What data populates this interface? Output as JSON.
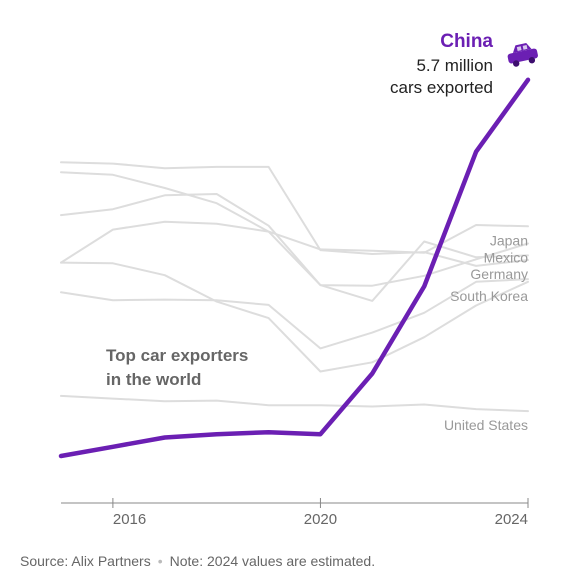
{
  "chart_data": {
    "type": "line",
    "title": "",
    "xlabel": "",
    "ylabel": "",
    "x": [
      2015,
      2016,
      2017,
      2018,
      2019,
      2020,
      2021,
      2022,
      2023,
      2024
    ],
    "x_ticks": [
      "2016",
      "2020",
      "2024"
    ],
    "tick_years": [
      2016,
      2020,
      2024
    ],
    "xlim": [
      2015,
      2024
    ],
    "ylim": [
      0,
      6.0
    ],
    "grid": false,
    "legend": "none",
    "series": [
      {
        "name": "Japan",
        "color": "#dddddd",
        "values": [
          4.3,
          4.26,
          4.06,
          3.83,
          3.4,
          3.13,
          3.11,
          3.08,
          3.5,
          3.48
        ]
      },
      {
        "name": "Mexico",
        "color": "#dddddd",
        "values": [
          3.65,
          3.74,
          3.95,
          3.97,
          3.49,
          2.59,
          2.58,
          2.73,
          2.98,
          3.22
        ]
      },
      {
        "name": "Germany",
        "color": "#dddddd",
        "values": [
          4.45,
          4.43,
          4.36,
          4.38,
          4.38,
          3.12,
          3.06,
          3.09,
          2.88,
          2.97
        ]
      },
      {
        "name": "South Korea",
        "color": "#dddddd",
        "values": [
          2.93,
          2.92,
          2.74,
          2.34,
          2.09,
          1.28,
          1.42,
          1.8,
          2.28,
          2.64
        ]
      },
      {
        "name": "",
        "color": "#dddddd",
        "values": [
          2.93,
          3.43,
          3.55,
          3.52,
          3.4,
          2.59,
          2.35,
          3.25,
          3.01,
          3.04
        ]
      },
      {
        "name": "",
        "color": "#dddddd",
        "values": [
          2.48,
          2.36,
          2.37,
          2.36,
          2.29,
          1.63,
          1.87,
          2.17,
          2.64,
          2.68
        ]
      },
      {
        "name": "United States",
        "color": "#dddddd",
        "values": [
          0.91,
          0.87,
          0.83,
          0.84,
          0.77,
          0.77,
          0.75,
          0.78,
          0.71,
          0.68
        ]
      },
      {
        "name": "China",
        "color": "#6b1fb3",
        "values": [
          0.0,
          0.14,
          0.28,
          0.33,
          0.36,
          0.33,
          1.25,
          2.57,
          4.61,
          5.7
        ]
      }
    ],
    "annotations": {
      "china_name": "China",
      "china_value": "5.7 million",
      "china_unit": "cars exported",
      "note": "Top car exporters",
      "note_line2": "in the world"
    }
  },
  "footer": {
    "source": "Source: Alix Partners",
    "note": "Note: 2024 values are estimated."
  }
}
